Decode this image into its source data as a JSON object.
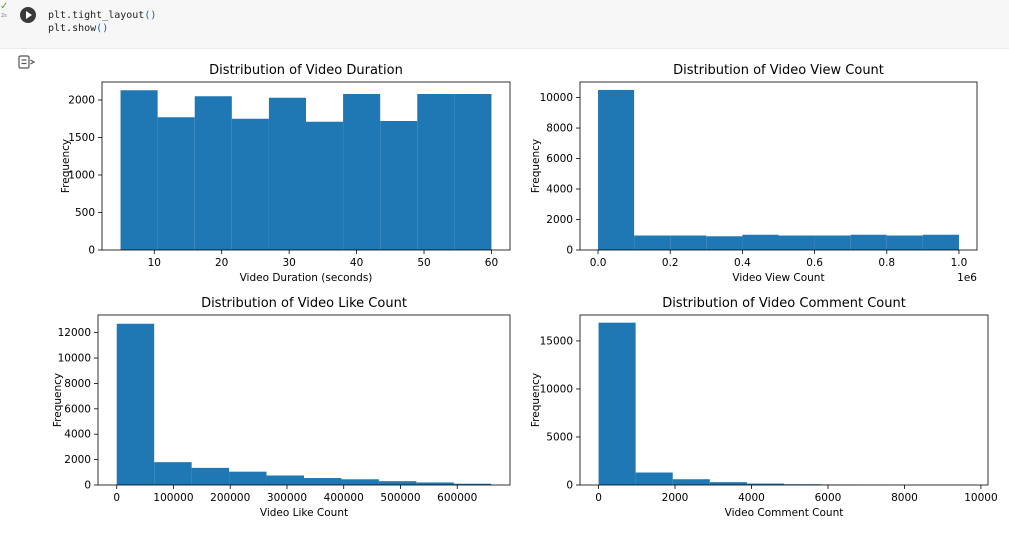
{
  "cell": {
    "status_icon": "check-icon",
    "elapsed": "2s",
    "run_icon": "play-icon",
    "code_line1_text": "plt.tight_layout",
    "code_line1_paren": "()",
    "code_line2_text": "plt.show",
    "code_line2_paren": "()",
    "output_icon": "output-toggle-icon"
  },
  "chart_data": [
    {
      "type": "bar",
      "title": "Distribution of Video Duration",
      "xlabel": "Video Duration (seconds)",
      "ylabel": "Frequency",
      "x_offset_label": "",
      "xlim": [
        2.25,
        62.75
      ],
      "ylim": [
        0,
        2240
      ],
      "bin_edges": [
        5,
        10.5,
        16,
        21.5,
        27,
        32.5,
        38,
        43.5,
        49,
        54.5,
        60
      ],
      "values": [
        2130,
        1770,
        2050,
        1750,
        2030,
        1710,
        2080,
        1720,
        2080,
        2080
      ],
      "xticks": [
        10,
        20,
        30,
        40,
        50,
        60
      ],
      "xtick_labels": [
        "10",
        "20",
        "30",
        "40",
        "50",
        "60"
      ],
      "yticks": [
        0,
        500,
        1000,
        1500,
        2000
      ],
      "ytick_labels": [
        "0",
        "500",
        "1000",
        "1500",
        "2000"
      ]
    },
    {
      "type": "bar",
      "title": "Distribution of Video View Count",
      "xlabel": "Video View Count",
      "ylabel": "Frequency",
      "x_offset_label": "1e6",
      "xlim": [
        -0.05,
        1.05
      ],
      "ylim": [
        0,
        11020
      ],
      "bin_edges": [
        0,
        0.1,
        0.2,
        0.3,
        0.4,
        0.5,
        0.6,
        0.7,
        0.8,
        0.9,
        1.0
      ],
      "values": [
        10500,
        950,
        950,
        900,
        1000,
        950,
        950,
        1000,
        950,
        1000
      ],
      "xticks": [
        0,
        0.2,
        0.4,
        0.6,
        0.8,
        1.0
      ],
      "xtick_labels": [
        "0.0",
        "0.2",
        "0.4",
        "0.6",
        "0.8",
        "1.0"
      ],
      "yticks": [
        0,
        2000,
        4000,
        6000,
        8000,
        10000
      ],
      "ytick_labels": [
        "0",
        "2000",
        "4000",
        "6000",
        "8000",
        "10000"
      ]
    },
    {
      "type": "bar",
      "title": "Distribution of Video Like Count",
      "xlabel": "Video Like Count",
      "ylabel": "Frequency",
      "x_offset_label": "",
      "xlim": [
        -33000,
        693000
      ],
      "ylim": [
        0,
        13390
      ],
      "bin_edges": [
        0,
        66000,
        132000,
        198000,
        264000,
        330000,
        396000,
        462000,
        528000,
        594000,
        660000
      ],
      "values": [
        12700,
        1800,
        1350,
        1050,
        750,
        550,
        450,
        300,
        200,
        100
      ],
      "xticks": [
        0,
        100000,
        200000,
        300000,
        400000,
        500000,
        600000
      ],
      "xtick_labels": [
        "0",
        "100000",
        "200000",
        "300000",
        "400000",
        "500000",
        "600000"
      ],
      "yticks": [
        0,
        2000,
        4000,
        6000,
        8000,
        10000,
        12000
      ],
      "ytick_labels": [
        "0",
        "2000",
        "4000",
        "6000",
        "8000",
        "10000",
        "12000"
      ]
    },
    {
      "type": "bar",
      "title": "Distribution of Video Comment Count",
      "xlabel": "Video Comment Count",
      "ylabel": "Frequency",
      "x_offset_label": "",
      "xlim": [
        -485,
        10185
      ],
      "ylim": [
        0,
        17700
      ],
      "bin_edges": [
        0,
        970,
        1940,
        2910,
        3880,
        4850,
        5820,
        6790,
        7760,
        8730,
        9700
      ],
      "values": [
        16900,
        1300,
        600,
        300,
        150,
        80,
        40,
        20,
        10,
        5
      ],
      "xticks": [
        0,
        2000,
        4000,
        6000,
        8000,
        10000
      ],
      "xtick_labels": [
        "0",
        "2000",
        "4000",
        "6000",
        "8000",
        "10000"
      ],
      "yticks": [
        0,
        5000,
        10000,
        15000
      ],
      "ytick_labels": [
        "0",
        "5000",
        "10000",
        "15000"
      ]
    }
  ],
  "colors": {
    "bar": "#1f77b4",
    "axis": "#000000",
    "cell_bg": "#f7f7f7"
  }
}
